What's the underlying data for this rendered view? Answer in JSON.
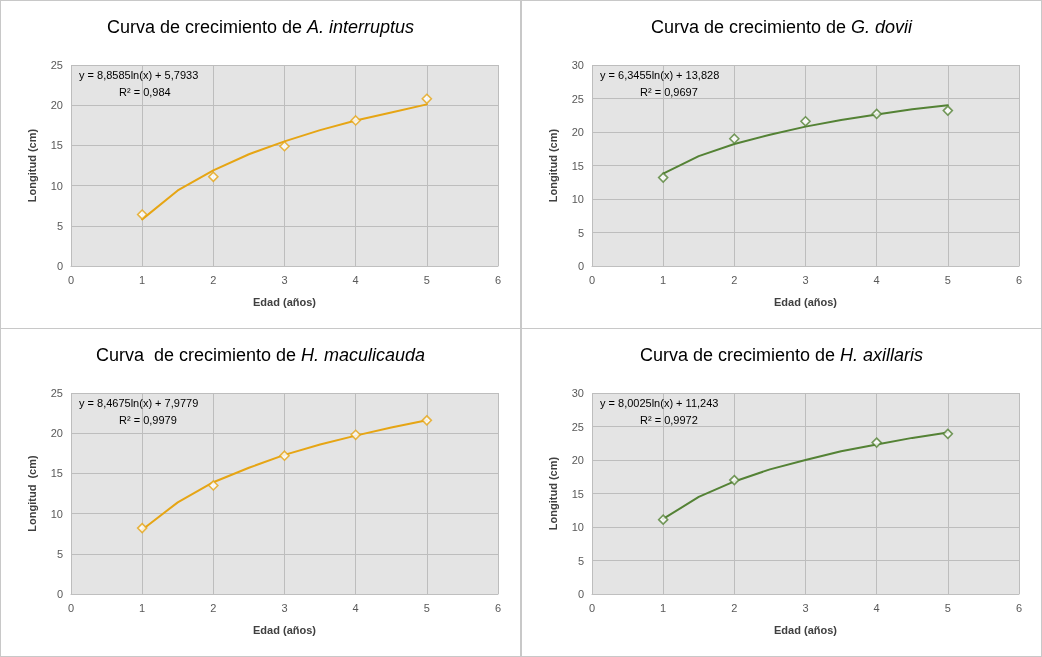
{
  "chart_data": [
    {
      "type": "scatter",
      "title": "Curva de crecimiento de A. interruptus",
      "xlabel": "Edad (años)",
      "ylabel": "Longitud (cm)",
      "annotations": [
        "y = 8,8585ln(x) + 5,7933",
        "R² = 0,984"
      ],
      "xlim": [
        0,
        6
      ],
      "xticks": [
        0,
        1,
        2,
        3,
        4,
        5,
        6
      ],
      "ylim": [
        0,
        25
      ],
      "yticks": [
        0,
        5,
        10,
        15,
        20,
        25
      ],
      "grid": true,
      "marker": "diamond",
      "series": [
        {
          "color": "#e6a514",
          "x": [
            1,
            2,
            3,
            4,
            5
          ],
          "values": [
            6.4,
            11.1,
            14.9,
            18.1,
            20.8
          ]
        },
        {
          "type": "line",
          "marker": "none",
          "color": "#e6a514",
          "x": [
            1,
            1.5,
            2,
            2.5,
            3,
            3.5,
            4,
            4.5,
            5
          ],
          "values": [
            5.8,
            9.4,
            11.9,
            13.9,
            15.5,
            16.9,
            18.1,
            19.1,
            20.1
          ]
        }
      ]
    },
    {
      "type": "scatter",
      "title": "Curva de crecimiento de G. dovii",
      "xlabel": "Edad (años)",
      "ylabel": "Longitud (cm)",
      "annotations": [
        "y = 6,3455ln(x) + 13,828",
        "R² = 0,9697"
      ],
      "xlim": [
        0,
        6
      ],
      "xticks": [
        0,
        1,
        2,
        3,
        4,
        5,
        6
      ],
      "ylim": [
        0,
        30
      ],
      "yticks": [
        0,
        5,
        10,
        15,
        20,
        25,
        30
      ],
      "grid": true,
      "marker": "diamond",
      "series": [
        {
          "color": "#548235",
          "x": [
            1,
            2,
            3,
            4,
            5
          ],
          "values": [
            13.2,
            19.0,
            21.6,
            22.7,
            23.2
          ]
        },
        {
          "type": "line",
          "marker": "none",
          "color": "#548235",
          "x": [
            1,
            1.5,
            2,
            2.5,
            3,
            3.5,
            4,
            4.5,
            5
          ],
          "values": [
            13.8,
            16.4,
            18.2,
            19.6,
            20.8,
            21.8,
            22.6,
            23.4,
            24.0
          ]
        }
      ]
    },
    {
      "type": "scatter",
      "title": "Curva  de crecimiento de H. maculicauda",
      "xlabel": "Edad (años)",
      "ylabel": "Longitud  (cm)",
      "annotations": [
        "y = 8,4675ln(x) + 7,9779",
        "R² = 0,9979"
      ],
      "xlim": [
        0,
        6
      ],
      "xticks": [
        0,
        1,
        2,
        3,
        4,
        5,
        6
      ],
      "ylim": [
        0,
        25
      ],
      "yticks": [
        0,
        5,
        10,
        15,
        20,
        25
      ],
      "grid": true,
      "marker": "diamond",
      "series": [
        {
          "color": "#e6a514",
          "x": [
            1,
            2,
            3,
            4,
            5
          ],
          "values": [
            8.2,
            13.5,
            17.2,
            19.8,
            21.6
          ]
        },
        {
          "type": "line",
          "marker": "none",
          "color": "#e6a514",
          "x": [
            1,
            1.5,
            2,
            2.5,
            3,
            3.5,
            4,
            4.5,
            5
          ],
          "values": [
            8.0,
            11.4,
            13.9,
            15.7,
            17.3,
            18.6,
            19.7,
            20.7,
            21.6
          ]
        }
      ]
    },
    {
      "type": "scatter",
      "title": "Curva de crecimiento de H. axillaris",
      "xlabel": "Edad (años)",
      "ylabel": "Longitud (cm)",
      "annotations": [
        "y = 8,0025ln(x) + 11,243",
        "R² = 0,9972"
      ],
      "xlim": [
        0,
        6
      ],
      "xticks": [
        0,
        1,
        2,
        3,
        4,
        5,
        6
      ],
      "ylim": [
        0,
        30
      ],
      "yticks": [
        0,
        5,
        10,
        15,
        20,
        25,
        30
      ],
      "grid": true,
      "marker": "diamond",
      "series": [
        {
          "color": "#548235",
          "x": [
            1,
            2,
            4,
            5
          ],
          "values": [
            11.1,
            17.0,
            22.6,
            23.9
          ]
        },
        {
          "type": "line",
          "marker": "none",
          "color": "#548235",
          "x": [
            1,
            1.5,
            2,
            2.5,
            3,
            3.5,
            4,
            4.5,
            5
          ],
          "values": [
            11.2,
            14.5,
            16.8,
            18.6,
            20.0,
            21.3,
            22.3,
            23.3,
            24.1
          ]
        }
      ]
    }
  ]
}
